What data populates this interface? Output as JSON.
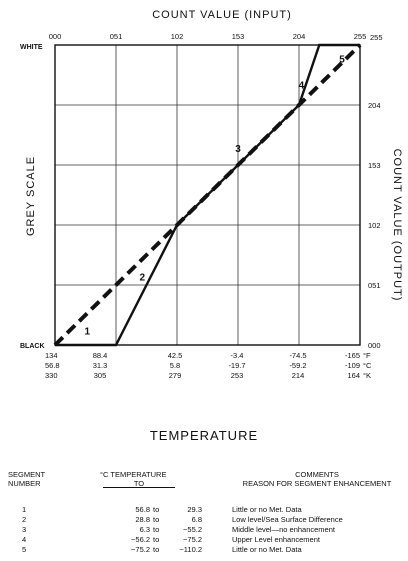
{
  "chart_data": {
    "type": "line",
    "title": "",
    "xlabel": "COUNT VALUE (INPUT)",
    "ylabel_left": "GREY SCALE",
    "ylabel_right": "COUNT VALUE (OUTPUT)",
    "xlim": [
      0,
      255
    ],
    "ylim": [
      0,
      255
    ],
    "grid": true,
    "x_ticks": [
      "000",
      "051",
      "102",
      "153",
      "204",
      "255"
    ],
    "y_ticks": [
      "000",
      "051",
      "102",
      "153",
      "204",
      "255"
    ],
    "y_end_labels": {
      "top": "WHITE",
      "bottom": "BLACK"
    },
    "series": [
      {
        "style": "solid",
        "points": [
          [
            0,
            0
          ],
          [
            51,
            0
          ],
          [
            102,
            102
          ],
          [
            204,
            204
          ],
          [
            221,
            255
          ],
          [
            255,
            255
          ]
        ]
      },
      {
        "style": "dashed",
        "points": [
          [
            0,
            0
          ],
          [
            255,
            255
          ]
        ]
      }
    ],
    "segment_labels": [
      {
        "text": "1",
        "x": 27,
        "y": 9
      },
      {
        "text": "2",
        "x": 73,
        "y": 55
      },
      {
        "text": "3",
        "x": 153,
        "y": 164
      },
      {
        "text": "4",
        "x": 206,
        "y": 218
      },
      {
        "text": "5",
        "x": 240,
        "y": 240
      }
    ],
    "temperature_scale": {
      "units": [
        "°F",
        "°C",
        "°K"
      ],
      "rows": [
        [
          "134",
          "88.4",
          "42.5",
          "-3.4",
          "-74.5",
          "-165"
        ],
        [
          "56.8",
          "31.3",
          "5.8",
          "-19.7",
          "-59.2",
          "-109"
        ],
        [
          "330",
          "305",
          "279",
          "253",
          "214",
          "164"
        ]
      ]
    }
  },
  "temperature_title": "TEMPERATURE",
  "legend": {
    "header_segment": [
      "SEGMENT",
      "NUMBER"
    ],
    "header_temp": [
      "°C TEMPERATURE",
      "TO"
    ],
    "header_comments": [
      "COMMENTS",
      "REASON FOR SEGMENT ENHANCEMENT"
    ],
    "rows": [
      {
        "segment": "1",
        "from": "56.8",
        "to": "29.3",
        "comment": "Little or no Met. Data"
      },
      {
        "segment": "2",
        "from": "28.8",
        "to": "6.8",
        "comment": "Low level/Sea Surface Difference"
      },
      {
        "segment": "3",
        "from": "6.3",
        "to": "−55.2",
        "comment": "Middle level—no enhancement"
      },
      {
        "segment": "4",
        "from": "−56.2",
        "to": "−75.2",
        "comment": "Upper Level enhancement"
      },
      {
        "segment": "5",
        "from": "−75.2",
        "to": "−110.2",
        "comment": "Little or no Met. Data"
      }
    ],
    "to_word": "to"
  }
}
